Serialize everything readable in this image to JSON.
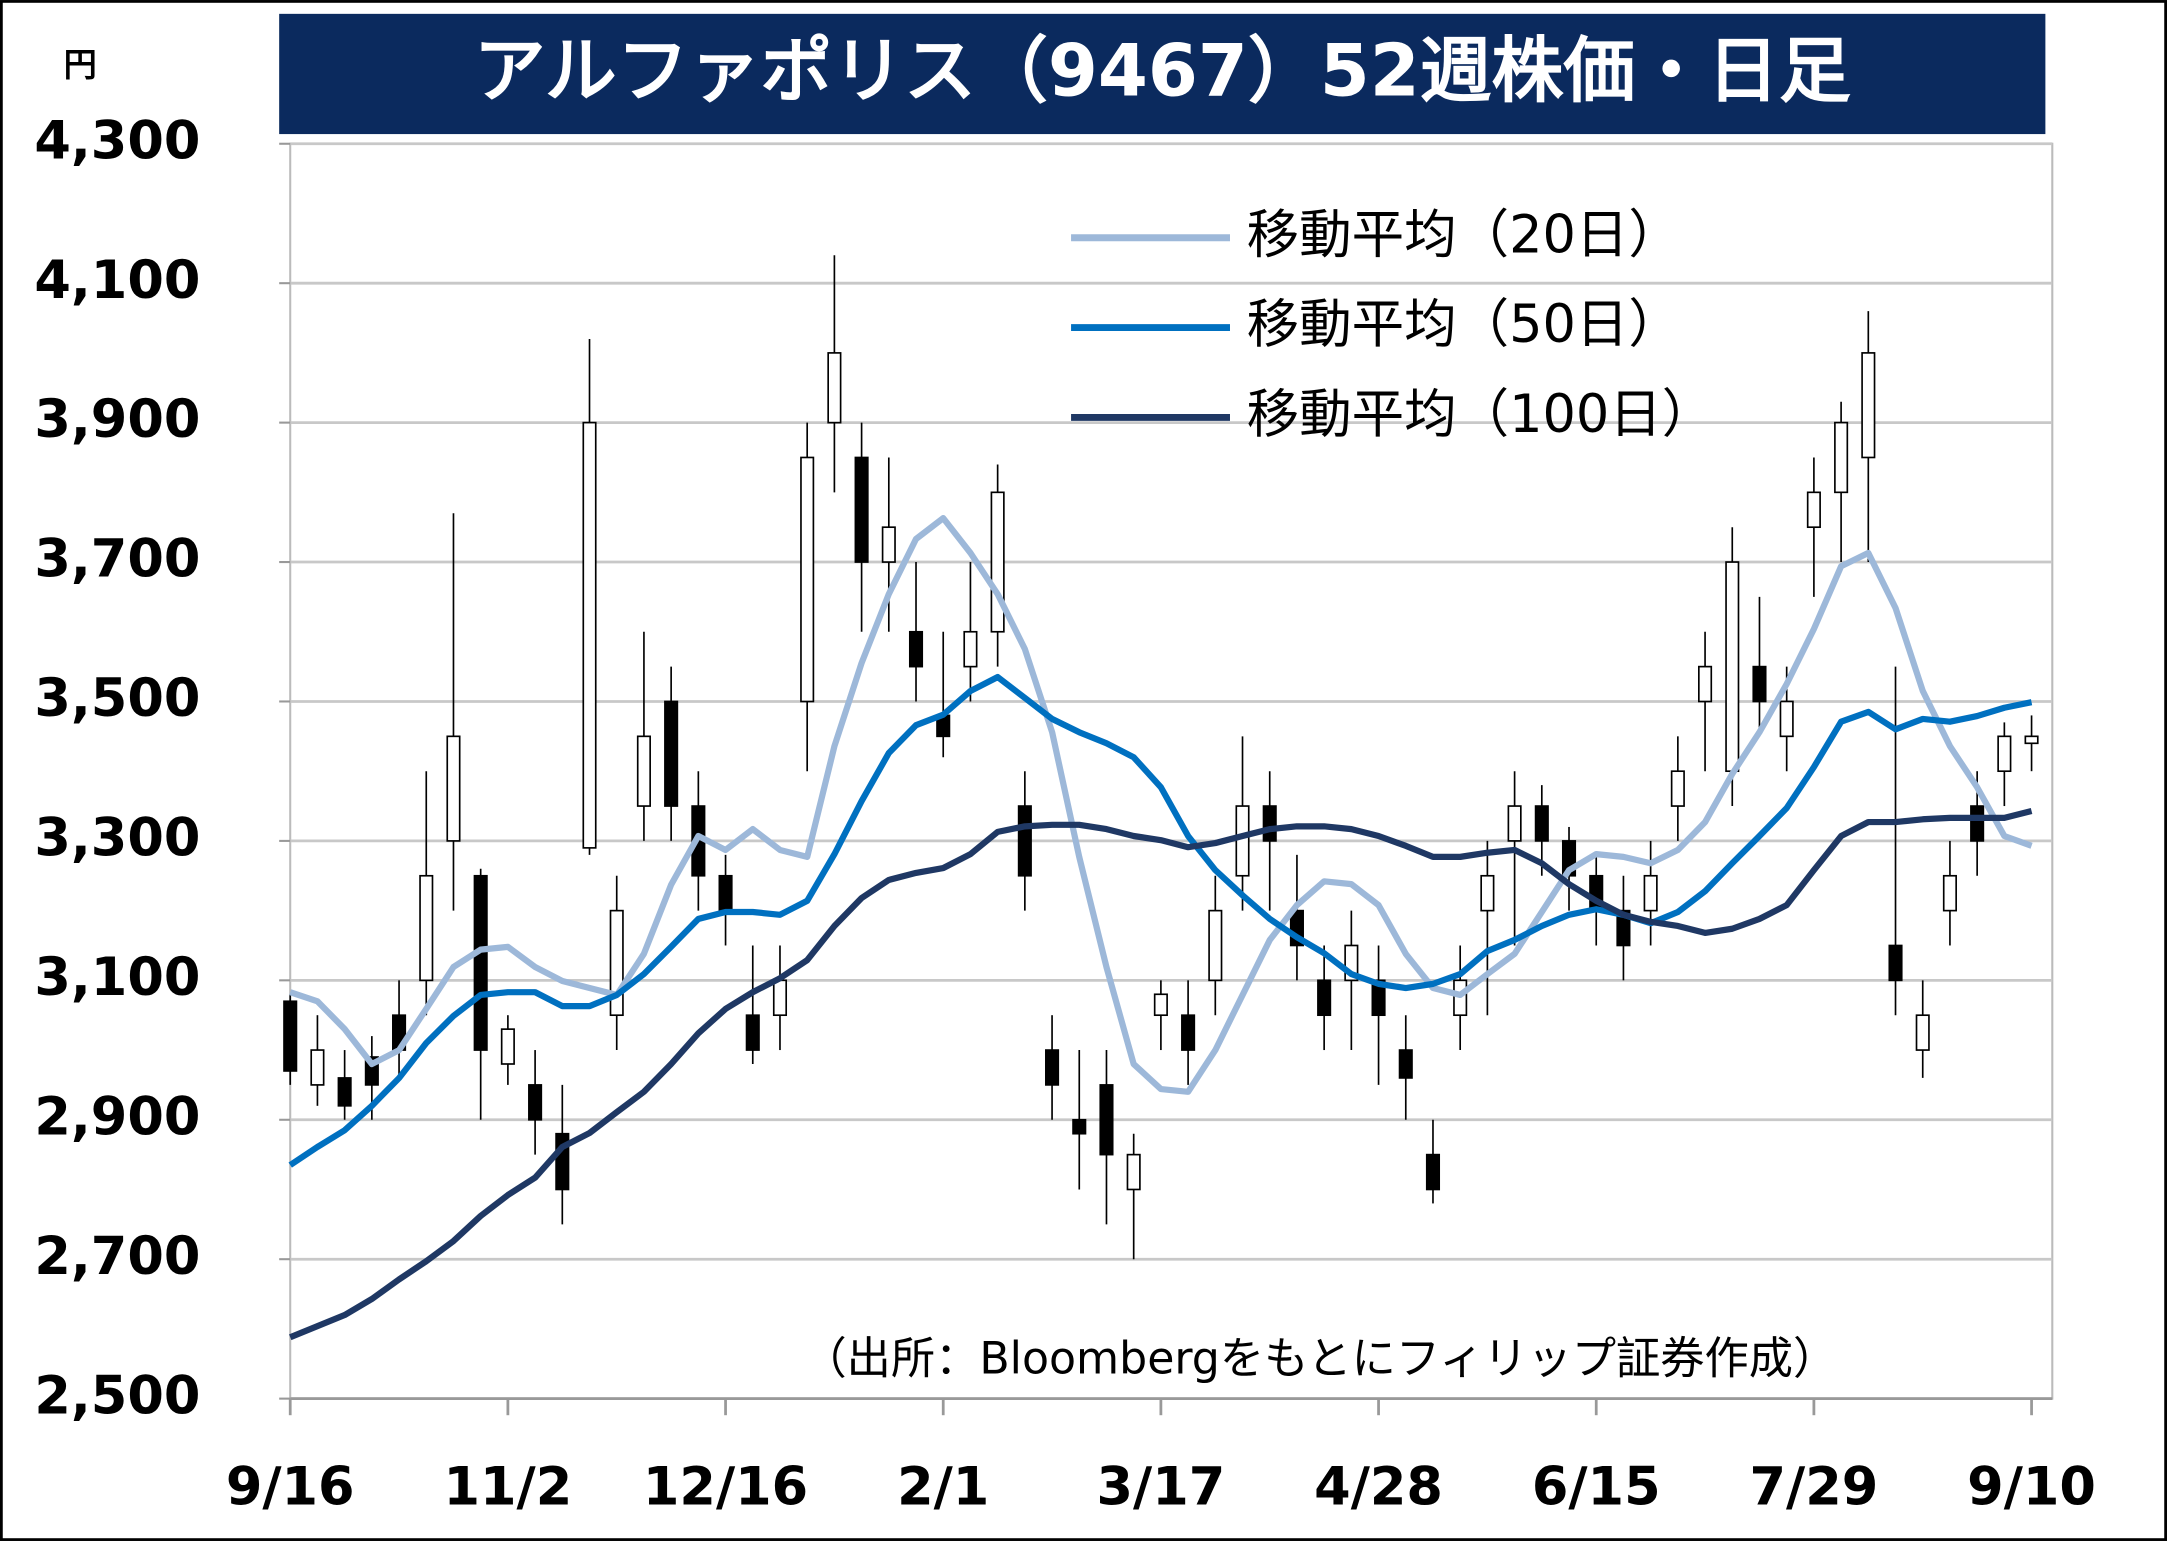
{
  "chart_data": {
    "type": "candlestick",
    "title": "アルファポリス（9467）52週株価・日足",
    "y_axis_label": "円",
    "source": "（出所：Bloombergをもとにフィリップ証券作成）",
    "categories": [
      "9/16",
      null,
      null,
      null,
      null,
      null,
      null,
      null,
      "11/2",
      null,
      null,
      null,
      null,
      null,
      null,
      null,
      "12/16",
      null,
      null,
      null,
      null,
      null,
      null,
      null,
      "2/1",
      null,
      null,
      null,
      null,
      null,
      null,
      null,
      "3/17",
      null,
      null,
      null,
      null,
      null,
      null,
      null,
      "4/28",
      null,
      null,
      null,
      null,
      null,
      null,
      null,
      "6/15",
      null,
      null,
      null,
      null,
      null,
      null,
      null,
      "7/29",
      null,
      null,
      null,
      null,
      null,
      null,
      null,
      "9/10"
    ],
    "ohlc": {
      "open": [
        3070,
        2950,
        2960,
        2990,
        3050,
        3100,
        3300,
        3250,
        2980,
        2950,
        2880,
        3290,
        3050,
        3350,
        3500,
        3350,
        3250,
        3050,
        3050,
        3500,
        3900,
        3850,
        3700,
        3600,
        3480,
        3550,
        3600,
        3350,
        3000,
        2900,
        2950,
        2800,
        3050,
        3050,
        3100,
        3250,
        3350,
        3200,
        3100,
        3100,
        3100,
        3000,
        2850,
        3050,
        3200,
        3300,
        3350,
        3300,
        3250,
        3200,
        3200,
        3350,
        3500,
        3400,
        3550,
        3450,
        3750,
        3800,
        3850,
        3150,
        3000,
        3200,
        3350,
        3400,
        3440
      ],
      "high": [
        3080,
        3050,
        3000,
        3020,
        3100,
        3400,
        3770,
        3260,
        3050,
        3000,
        2950,
        4020,
        3250,
        3600,
        3550,
        3400,
        3280,
        3150,
        3150,
        3900,
        4140,
        3900,
        3850,
        3700,
        3600,
        3700,
        3840,
        3400,
        3050,
        3000,
        3000,
        2880,
        3100,
        3100,
        3250,
        3450,
        3400,
        3280,
        3150,
        3200,
        3150,
        3050,
        2900,
        3150,
        3300,
        3400,
        3380,
        3320,
        3280,
        3250,
        3300,
        3450,
        3600,
        3750,
        3650,
        3550,
        3850,
        3930,
        4060,
        3550,
        3100,
        3300,
        3400,
        3470,
        3480
      ],
      "low": [
        2950,
        2920,
        2900,
        2900,
        2960,
        3050,
        3200,
        2900,
        2950,
        2850,
        2750,
        3280,
        3000,
        3300,
        3300,
        3200,
        3150,
        2980,
        3000,
        3400,
        3800,
        3600,
        3600,
        3500,
        3420,
        3500,
        3550,
        3200,
        2900,
        2800,
        2750,
        2700,
        3000,
        2950,
        3050,
        3200,
        3200,
        3100,
        3000,
        3000,
        2950,
        2900,
        2780,
        3000,
        3050,
        3150,
        3250,
        3200,
        3150,
        3100,
        3150,
        3300,
        3400,
        3350,
        3450,
        3400,
        3650,
        3700,
        3700,
        3050,
        2960,
        3150,
        3250,
        3350,
        3400
      ],
      "close": [
        2970,
        3000,
        2920,
        2950,
        3000,
        3250,
        3450,
        3000,
        3030,
        2900,
        2800,
        3900,
        3200,
        3450,
        3350,
        3250,
        3200,
        3000,
        3100,
        3850,
        4000,
        3700,
        3750,
        3550,
        3450,
        3600,
        3800,
        3250,
        2950,
        2880,
        2850,
        2850,
        3080,
        3000,
        3200,
        3350,
        3300,
        3150,
        3050,
        3150,
        3050,
        2960,
        2800,
        3100,
        3250,
        3350,
        3300,
        3250,
        3200,
        3150,
        3250,
        3400,
        3550,
        3700,
        3500,
        3500,
        3800,
        3900,
        4000,
        3100,
        3050,
        3250,
        3300,
        3450,
        3450
      ]
    },
    "series": [
      {
        "name": "移動平均（20日）",
        "color": "#9db8d9",
        "values": [
          3083,
          3070,
          3030,
          2980,
          3000,
          3059,
          3119,
          3144,
          3148,
          3119,
          3099,
          3089,
          3079,
          3138,
          3237,
          3307,
          3287,
          3317,
          3287,
          3277,
          3436,
          3555,
          3654,
          3733,
          3763,
          3713,
          3654,
          3575,
          3456,
          3277,
          3119,
          2980,
          2944,
          2940,
          3000,
          3079,
          3158,
          3208,
          3242,
          3238,
          3208,
          3138,
          3089,
          3079,
          3109,
          3138,
          3198,
          3258,
          3281,
          3277,
          3268,
          3287,
          3327,
          3396,
          3456,
          3525,
          3604,
          3694,
          3713,
          3634,
          3515,
          3436,
          3377,
          3307,
          3293
        ]
      },
      {
        "name": "移動平均（50日）",
        "color": "#0070c0",
        "values": [
          2835,
          2861,
          2885,
          2920,
          2960,
          3010,
          3049,
          3079,
          3083,
          3083,
          3063,
          3063,
          3079,
          3109,
          3148,
          3188,
          3198,
          3198,
          3194,
          3214,
          3281,
          3357,
          3426,
          3466,
          3481,
          3515,
          3535,
          3505,
          3475,
          3456,
          3440,
          3420,
          3377,
          3307,
          3258,
          3222,
          3188,
          3162,
          3139,
          3109,
          3095,
          3089,
          3095,
          3109,
          3142,
          3158,
          3178,
          3194,
          3202,
          3194,
          3182,
          3198,
          3228,
          3268,
          3307,
          3347,
          3406,
          3471,
          3485,
          3460,
          3475,
          3471,
          3479,
          3491,
          3499
        ]
      },
      {
        "name": "移動平均（100日）",
        "color": "#1f3864",
        "values": [
          2588,
          2604,
          2620,
          2643,
          2671,
          2697,
          2726,
          2762,
          2792,
          2817,
          2861,
          2881,
          2911,
          2940,
          2980,
          3024,
          3059,
          3083,
          3103,
          3129,
          3178,
          3218,
          3244,
          3254,
          3261,
          3281,
          3313,
          3321,
          3323,
          3323,
          3317,
          3307,
          3301,
          3291,
          3297,
          3307,
          3317,
          3321,
          3321,
          3317,
          3307,
          3293,
          3277,
          3277,
          3283,
          3287,
          3268,
          3238,
          3214,
          3194,
          3184,
          3178,
          3168,
          3174,
          3188,
          3208,
          3258,
          3307,
          3327,
          3327,
          3331,
          3333,
          3333,
          3333,
          3343
        ]
      }
    ],
    "ylim": [
      2500,
      4300
    ],
    "yticks": [
      {
        "value": 2500,
        "label": "2,500"
      },
      {
        "value": 2700,
        "label": "2,700"
      },
      {
        "value": 2900,
        "label": "2,900"
      },
      {
        "value": 3100,
        "label": "3,100"
      },
      {
        "value": 3300,
        "label": "3,300"
      },
      {
        "value": 3500,
        "label": "3,500"
      },
      {
        "value": 3700,
        "label": "3,700"
      },
      {
        "value": 3900,
        "label": "3,900"
      },
      {
        "value": 4100,
        "label": "4,100"
      },
      {
        "value": 4300,
        "label": "4,300"
      }
    ],
    "grid": true,
    "legend": "top-right"
  }
}
